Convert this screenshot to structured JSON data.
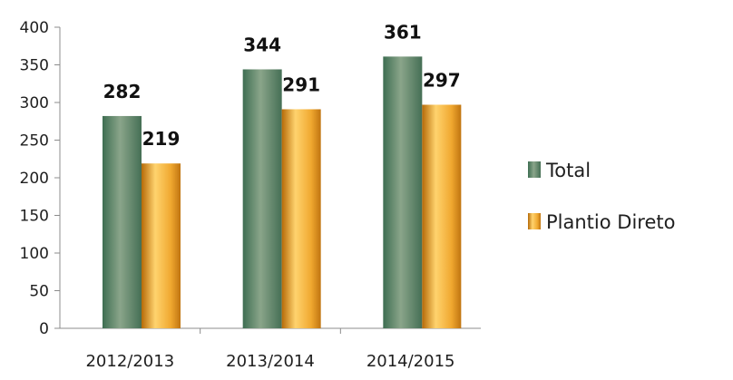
{
  "chart_data": {
    "type": "bar",
    "categories": [
      "2012/2013",
      "2013/2014",
      "2014/2015"
    ],
    "series": [
      {
        "name": "Total",
        "values": [
          282,
          344,
          361
        ]
      },
      {
        "name": "Plantio Direto",
        "values": [
          219,
          291,
          297
        ]
      }
    ],
    "ylim": [
      0,
      400
    ],
    "yticks": [
      0,
      50,
      100,
      150,
      200,
      250,
      300,
      350,
      400
    ],
    "data_labels": true,
    "grid": false,
    "legend_position": "right",
    "colors": {
      "total_dark": "#3e6e52",
      "total_light": "#8aa58a",
      "plantio_dark": "#b66a08",
      "plantio_light": "#ffd36e"
    }
  }
}
